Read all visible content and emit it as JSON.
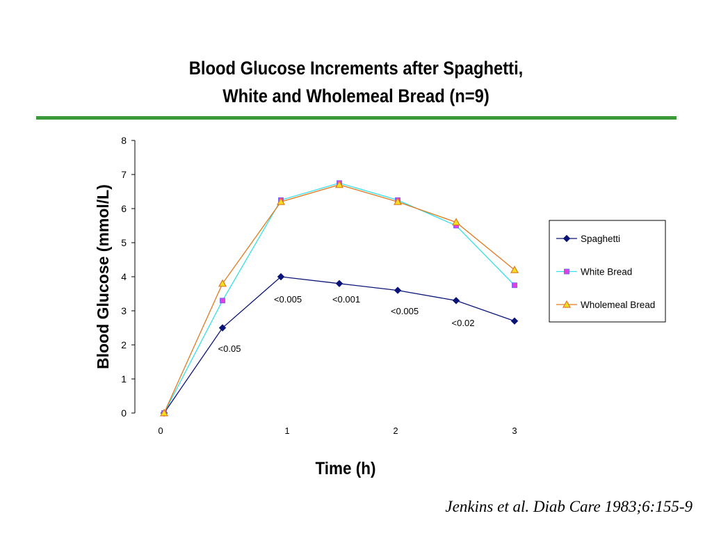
{
  "header": {
    "title_line1": "Blood Glucose Increments after  Spaghetti,",
    "title_line2": "White and Wholemeal Bread (n=9)"
  },
  "citation": "Jenkins et al. Diab Care 1983;6:155-9",
  "colors": {
    "rule": "#3a9a3a"
  },
  "chart_data": {
    "type": "line",
    "title": "Blood Glucose Increments after  Spaghetti, White and Wholemeal Bread (n=9)",
    "xlabel": "Time (h)",
    "ylabel": "Blood Glucose (mmol/L)",
    "ylim": [
      0,
      8
    ],
    "yticks": [
      0,
      1,
      2,
      3,
      4,
      5,
      6,
      7,
      8
    ],
    "xlim": [
      0,
      3
    ],
    "xticks": [
      0,
      1,
      2,
      3
    ],
    "x": [
      0,
      0.5,
      1,
      1.5,
      2,
      2.5,
      3
    ],
    "grid": false,
    "legend_position": "right",
    "series": [
      {
        "name": "Spaghetti",
        "color": "#0a1478",
        "marker": "diamond",
        "values": [
          0,
          2.5,
          4.0,
          3.8,
          3.6,
          3.3,
          2.7
        ]
      },
      {
        "name": "White Bread",
        "color": "#33e0e8",
        "marker": "square",
        "marker_color": "#e040e0",
        "values": [
          0,
          3.3,
          6.25,
          6.75,
          6.25,
          5.5,
          3.75
        ]
      },
      {
        "name": "Wholemeal Bread",
        "color": "#e07a20",
        "marker": "triangle",
        "marker_color": "#f0e020",
        "values": [
          0,
          3.8,
          6.2,
          6.7,
          6.2,
          5.6,
          4.2
        ]
      }
    ],
    "annotations": [
      {
        "text": "<0.05",
        "x": 0.5,
        "y": 1.9
      },
      {
        "text": "<0.005",
        "x": 1.0,
        "y": 3.35
      },
      {
        "text": "<0.001",
        "x": 1.5,
        "y": 3.35
      },
      {
        "text": "<0.005",
        "x": 2.0,
        "y": 3.0
      },
      {
        "text": "<0.02",
        "x": 2.5,
        "y": 2.65
      }
    ]
  }
}
